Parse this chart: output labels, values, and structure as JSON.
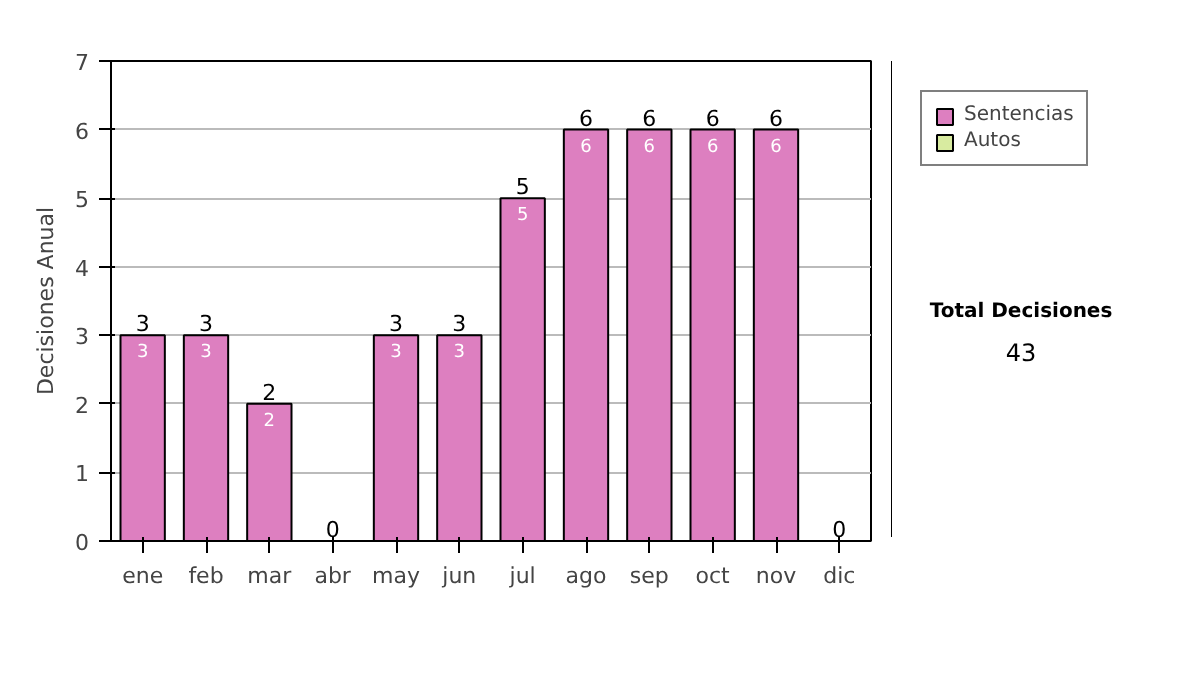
{
  "chart_data": {
    "type": "bar",
    "stacked": true,
    "ylabel": "Decisiones Anual",
    "categories": [
      "ene",
      "feb",
      "mar",
      "abr",
      "may",
      "jun",
      "jul",
      "ago",
      "sep",
      "oct",
      "nov",
      "dic"
    ],
    "series": [
      {
        "name": "Sentencias",
        "color": "#dd7fc0",
        "values": [
          3,
          3,
          2,
          0,
          3,
          3,
          5,
          6,
          6,
          6,
          6,
          0
        ],
        "value_labels": [
          "3",
          "3",
          "2",
          null,
          "3",
          "3",
          "5",
          "6",
          "6",
          "6",
          "6",
          null
        ]
      },
      {
        "name": "Autos",
        "color": "#d8eba0",
        "values": [
          0,
          0,
          0,
          0,
          0,
          0,
          0,
          0,
          0,
          0,
          0,
          0
        ]
      }
    ],
    "totals": [
      "3",
      "3",
      "2",
      "0",
      "3",
      "3",
      "5",
      "6",
      "6",
      "6",
      "6",
      "0"
    ],
    "ylim": [
      0,
      7
    ],
    "yticks": [
      0,
      1,
      2,
      3,
      4,
      5,
      6,
      7
    ],
    "grid": "y",
    "legend": "right",
    "annotations": [
      "Total Decisiones",
      "43"
    ]
  }
}
